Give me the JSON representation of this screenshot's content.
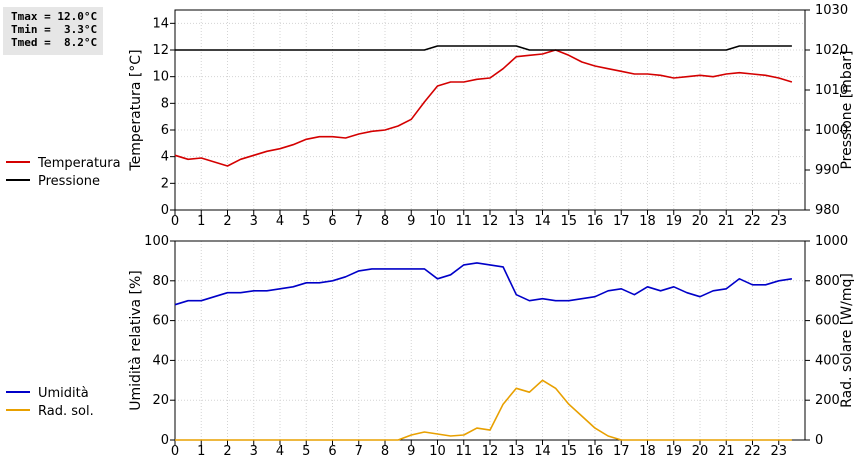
{
  "stats": {
    "tmax": "Tmax = 12.0°C",
    "tmin": "Tmin =  3.3°C",
    "tmed": "Tmed =  8.2°C"
  },
  "chart_data": [
    {
      "type": "line",
      "x": [
        0,
        0.5,
        1,
        1.5,
        2,
        2.5,
        3,
        3.5,
        4,
        4.5,
        5,
        5.5,
        6,
        6.5,
        7,
        7.5,
        8,
        8.5,
        9,
        9.5,
        10,
        10.5,
        11,
        11.5,
        12,
        12.5,
        13,
        13.5,
        14,
        14.5,
        15,
        15.5,
        16,
        16.5,
        17,
        17.5,
        18,
        18.5,
        19,
        19.5,
        20,
        20.5,
        21,
        21.5,
        22,
        22.5,
        23,
        23.5
      ],
      "xlim": [
        0,
        24
      ],
      "xticks": [
        "0",
        "1",
        "2",
        "3",
        "4",
        "5",
        "6",
        "7",
        "8",
        "9",
        "10",
        "11",
        "12",
        "13",
        "14",
        "15",
        "16",
        "17",
        "18",
        "19",
        "20",
        "21",
        "22",
        "23"
      ],
      "y_left": {
        "label": "Temperatura [°C]",
        "lim": [
          0,
          15
        ],
        "ticks": [
          "0",
          "2",
          "4",
          "6",
          "8",
          "10",
          "12",
          "14"
        ]
      },
      "y_right": {
        "label": "Pressione [mbar]",
        "lim": [
          980,
          1030
        ],
        "ticks": [
          "980",
          "990",
          "1000",
          "1010",
          "1020",
          "1030"
        ]
      },
      "grid": true,
      "legend_position": "left",
      "series": [
        {
          "name": "Temperatura",
          "axis": "left",
          "color": "#d40000",
          "values": [
            4.1,
            3.8,
            3.9,
            3.6,
            3.3,
            3.8,
            4.1,
            4.4,
            4.6,
            4.9,
            5.3,
            5.5,
            5.5,
            5.4,
            5.7,
            5.9,
            6.0,
            6.3,
            6.8,
            8.1,
            9.3,
            9.6,
            9.6,
            9.8,
            9.9,
            10.6,
            11.5,
            11.6,
            11.7,
            12.0,
            11.6,
            11.1,
            10.8,
            10.6,
            10.4,
            10.2,
            10.2,
            10.1,
            9.9,
            10.0,
            10.1,
            10.0,
            10.2,
            10.3,
            10.2,
            10.1,
            9.9,
            9.6
          ]
        },
        {
          "name": "Pressione",
          "axis": "right",
          "color": "#000000",
          "values": [
            1020,
            1020,
            1020,
            1020,
            1020,
            1020,
            1020,
            1020,
            1020,
            1020,
            1020,
            1020,
            1020,
            1020,
            1020,
            1020,
            1020,
            1020,
            1020,
            1020,
            1021,
            1021,
            1021,
            1021,
            1021,
            1021,
            1021,
            1020,
            1020,
            1020,
            1020,
            1020,
            1020,
            1020,
            1020,
            1020,
            1020,
            1020,
            1020,
            1020,
            1020,
            1020,
            1020,
            1021,
            1021,
            1021,
            1021,
            1021
          ]
        }
      ]
    },
    {
      "type": "line",
      "x": [
        0,
        0.5,
        1,
        1.5,
        2,
        2.5,
        3,
        3.5,
        4,
        4.5,
        5,
        5.5,
        6,
        6.5,
        7,
        7.5,
        8,
        8.5,
        9,
        9.5,
        10,
        10.5,
        11,
        11.5,
        12,
        12.5,
        13,
        13.5,
        14,
        14.5,
        15,
        15.5,
        16,
        16.5,
        17,
        17.5,
        18,
        18.5,
        19,
        19.5,
        20,
        20.5,
        21,
        21.5,
        22,
        22.5,
        23,
        23.5
      ],
      "xlim": [
        0,
        24
      ],
      "xticks": [
        "0",
        "1",
        "2",
        "3",
        "4",
        "5",
        "6",
        "7",
        "8",
        "9",
        "10",
        "11",
        "12",
        "13",
        "14",
        "15",
        "16",
        "17",
        "18",
        "19",
        "20",
        "21",
        "22",
        "23"
      ],
      "y_left": {
        "label": "Umidità relativa [%]",
        "lim": [
          0,
          100
        ],
        "ticks": [
          "0",
          "20",
          "40",
          "60",
          "80",
          "100"
        ]
      },
      "y_right": {
        "label": "Rad. solare [W/mq]",
        "lim": [
          0,
          1000
        ],
        "ticks": [
          "0",
          "200",
          "400",
          "600",
          "800",
          "1000"
        ]
      },
      "grid": true,
      "legend_position": "left",
      "series": [
        {
          "name": "Umidità",
          "axis": "left",
          "color": "#0000c8",
          "values": [
            68,
            70,
            70,
            72,
            74,
            74,
            75,
            75,
            76,
            77,
            79,
            79,
            80,
            82,
            85,
            86,
            86,
            86,
            86,
            86,
            81,
            83,
            88,
            89,
            88,
            87,
            73,
            70,
            71,
            70,
            70,
            71,
            72,
            75,
            76,
            73,
            77,
            75,
            77,
            74,
            72,
            75,
            76,
            81,
            78,
            78,
            80,
            81
          ]
        },
        {
          "name": "Rad. sol.",
          "axis": "right",
          "color": "#e8a000",
          "values": [
            0,
            0,
            0,
            0,
            0,
            0,
            0,
            0,
            0,
            0,
            0,
            0,
            0,
            0,
            0,
            0,
            0,
            0,
            25,
            40,
            30,
            20,
            25,
            60,
            50,
            180,
            260,
            240,
            300,
            260,
            180,
            120,
            60,
            20,
            0,
            0,
            0,
            0,
            0,
            0,
            0,
            0,
            0,
            0,
            0,
            0,
            0,
            0
          ]
        }
      ]
    }
  ]
}
